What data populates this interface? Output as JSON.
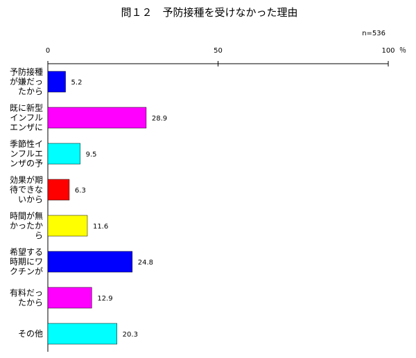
{
  "chart_data": {
    "type": "bar",
    "orientation": "horizontal",
    "title": "問１２　予防接種を受けなかった理由",
    "note": "n=536",
    "unit": "％",
    "xlim": [
      0,
      100
    ],
    "xticks": [
      "0",
      "50",
      "100"
    ],
    "categories": [
      [
        "予防接種",
        "が嫌だっ",
        "たから"
      ],
      [
        "既に新型",
        "インフル",
        "エンザに"
      ],
      [
        "季節性イ",
        "ンフルエ",
        "ンザの予"
      ],
      [
        "効果が期",
        "待できな",
        "いから"
      ],
      [
        "時間が無",
        "かったか",
        "ら"
      ],
      [
        "希望する",
        "時期にワ",
        "クチンが"
      ],
      [
        "有料だっ",
        "たから"
      ],
      [
        "その他"
      ]
    ],
    "values": [
      5.2,
      28.9,
      9.5,
      6.3,
      11.6,
      24.8,
      12.9,
      20.3
    ],
    "value_labels": [
      "5.2",
      "28.9",
      "9.5",
      "6.3",
      "11.6",
      "24.8",
      "12.9",
      "20.3"
    ],
    "colors": [
      "#0000ff",
      "#ff00ff",
      "#00ffff",
      "#ff0000",
      "#ffff00",
      "#0000ff",
      "#ff00ff",
      "#00ffff"
    ],
    "grid": false,
    "legend": "none"
  }
}
